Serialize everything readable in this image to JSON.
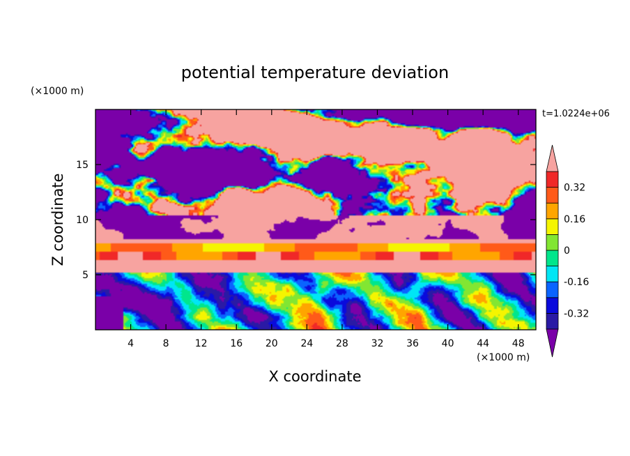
{
  "chart_data": {
    "type": "heatmap",
    "title": "potential temperature deviation",
    "xlabel": "X coordinate",
    "ylabel": "Z coordinate",
    "x_unit": "(×1000 m)",
    "y_unit": "(×1000 m)",
    "time_label": "t=1.0224e+06",
    "xlim": [
      0,
      50
    ],
    "ylim": [
      0,
      20
    ],
    "x_ticks": [
      4,
      8,
      12,
      16,
      20,
      24,
      28,
      32,
      36,
      40,
      44,
      48
    ],
    "y_ticks": [
      5,
      10,
      15
    ],
    "colorbar": {
      "levels": [
        -0.4,
        -0.32,
        -0.24,
        -0.16,
        -0.08,
        0,
        0.08,
        0.16,
        0.24,
        0.32,
        0.4
      ],
      "labeled_ticks": [
        "0.32",
        "0.16",
        "0",
        "-0.16",
        "-0.32"
      ],
      "labeled_values": [
        0.32,
        0.16,
        0,
        -0.16,
        -0.32
      ],
      "colors_low_to_high": [
        "#7a00a8",
        "#2a1aa5",
        "#0a0adc",
        "#0a64ff",
        "#00e6f5",
        "#00e68c",
        "#82e632",
        "#f5f500",
        "#ffa500",
        "#ff5a19",
        "#f02828",
        "#f7a3a0"
      ]
    }
  }
}
